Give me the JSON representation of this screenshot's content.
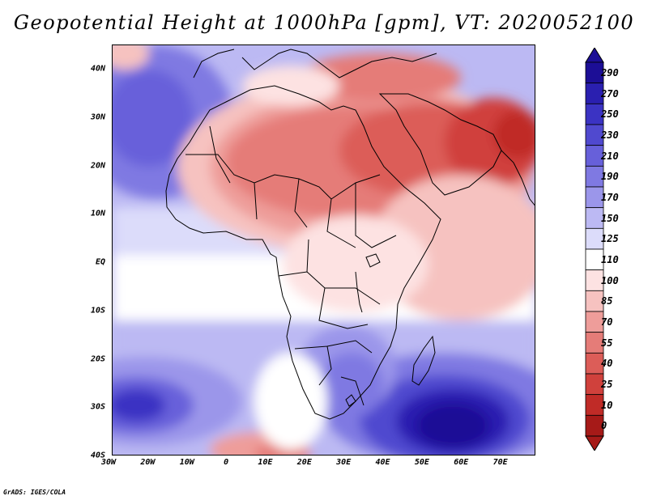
{
  "title": "Geopotential Height at 1000hPa [gpm], VT: 2020052100",
  "map": {
    "variable": "Geopotential Height",
    "level": "1000hPa",
    "units": "gpm",
    "valid_time": "2020052100",
    "lon_range": [
      -30,
      75
    ],
    "lat_range": [
      -40,
      45
    ],
    "lat_labels": [
      "40N",
      "30N",
      "20N",
      "10N",
      "EQ",
      "10S",
      "20S",
      "30S",
      "40S"
    ],
    "lon_labels": [
      "30W",
      "20W",
      "10W",
      "0",
      "10E",
      "20E",
      "30E",
      "40E",
      "50E",
      "60E",
      "70E"
    ]
  },
  "colorbar": {
    "levels": [
      "290",
      "270",
      "250",
      "230",
      "210",
      "190",
      "170",
      "150",
      "125",
      "110",
      "100",
      "85",
      "70",
      "55",
      "40",
      "25",
      "10",
      "0"
    ],
    "colors": [
      "#1c0e96",
      "#2a1fb0",
      "#3b33c3",
      "#5049cf",
      "#6760da",
      "#7f79e2",
      "#9b96ea",
      "#bcb9f3",
      "#dcdcfa",
      "#ffffff",
      "#fde2e2",
      "#f6c2c0",
      "#ee9d9a",
      "#e57c78",
      "#dc5d58",
      "#d0413c",
      "#c02b27",
      "#a61a18"
    ]
  },
  "credit": "GrADS: IGES/COLA"
}
